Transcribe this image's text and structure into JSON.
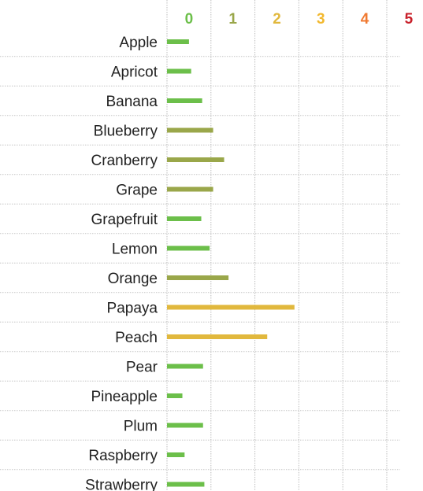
{
  "chart_data": {
    "type": "bar",
    "orientation": "horizontal",
    "categories": [
      "Apple",
      "Apricot",
      "Banana",
      "Blueberry",
      "Cranberry",
      "Grape",
      "Grapefruit",
      "Lemon",
      "Orange",
      "Papaya",
      "Peach",
      "Pear",
      "Pineapple",
      "Plum",
      "Raspberry",
      "Strawberry"
    ],
    "values": [
      0.5,
      0.55,
      0.8,
      1.05,
      1.3,
      1.05,
      0.78,
      0.97,
      1.4,
      2.9,
      2.28,
      0.82,
      0.35,
      0.82,
      0.4,
      0.85
    ],
    "bar_colors": [
      "#6cbf4a",
      "#6cbf4a",
      "#6cbf4a",
      "#9aa74a",
      "#9aa74a",
      "#9aa74a",
      "#6cbf4a",
      "#6cbf4a",
      "#9aa74a",
      "#e1b83d",
      "#e1b83d",
      "#6cbf4a",
      "#6cbf4a",
      "#6cbf4a",
      "#6cbf4a",
      "#6cbf4a"
    ],
    "x_ticks": [
      {
        "label": "0",
        "color": "#6cbf4a"
      },
      {
        "label": "1",
        "color": "#9aa74a"
      },
      {
        "label": "2",
        "color": "#e1b83d"
      },
      {
        "label": "3",
        "color": "#f2b82e"
      },
      {
        "label": "4",
        "color": "#f07a32"
      },
      {
        "label": "5",
        "color": "#c8202a"
      }
    ],
    "xlim": [
      0,
      5.3
    ],
    "tick_position": "top",
    "grid": true,
    "title": "",
    "xlabel": "",
    "ylabel": ""
  }
}
